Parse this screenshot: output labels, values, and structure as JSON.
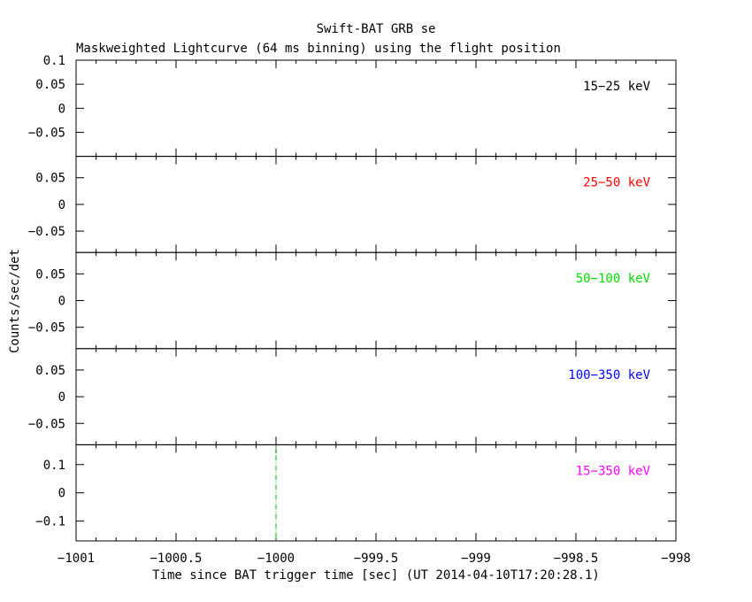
{
  "title": "Swift-BAT GRB se",
  "subtitle": "Maskweighted Lightcurve (64 ms binning) using the flight position",
  "xlabel": "Time since BAT trigger time [sec] (UT 2014-04-10T17:20:28.1)",
  "ylabel": "Counts/sec/det",
  "chart_data": [
    {
      "type": "line",
      "band": "15-25 keV",
      "band_display": "15−25 keV",
      "color": "#000000",
      "xlim": [
        -1001,
        -998
      ],
      "ylim": [
        -0.1,
        0.1
      ],
      "yticks": [
        {
          "v": 0.1,
          "label": "0.1"
        },
        {
          "v": 0.05,
          "label": "0.05"
        },
        {
          "v": 0,
          "label": "0"
        },
        {
          "v": -0.05,
          "label": "−0.05"
        }
      ],
      "series": []
    },
    {
      "type": "line",
      "band": "25-50 keV",
      "band_display": "25−50 keV",
      "color": "#ff0000",
      "xlim": [
        -1001,
        -998
      ],
      "ylim": [
        -0.09,
        0.09
      ],
      "yticks": [
        {
          "v": 0.05,
          "label": "0.05"
        },
        {
          "v": 0,
          "label": "0"
        },
        {
          "v": -0.05,
          "label": "−0.05"
        }
      ],
      "series": []
    },
    {
      "type": "line",
      "band": "50-100 keV",
      "band_display": "50−100 keV",
      "color": "#00dd00",
      "xlim": [
        -1001,
        -998
      ],
      "ylim": [
        -0.09,
        0.09
      ],
      "yticks": [
        {
          "v": 0.05,
          "label": "0.05"
        },
        {
          "v": 0,
          "label": "0"
        },
        {
          "v": -0.05,
          "label": "−0.05"
        }
      ],
      "series": []
    },
    {
      "type": "line",
      "band": "100-350 keV",
      "band_display": "100−350 keV",
      "color": "#0000ff",
      "xlim": [
        -1001,
        -998
      ],
      "ylim": [
        -0.09,
        0.09
      ],
      "yticks": [
        {
          "v": 0.05,
          "label": "0.05"
        },
        {
          "v": 0,
          "label": "0"
        },
        {
          "v": -0.05,
          "label": "−0.05"
        }
      ],
      "series": []
    },
    {
      "type": "line",
      "band": "15-350 keV",
      "band_display": "15−350 keV",
      "color": "#ff00ff",
      "xlim": [
        -1001,
        -998
      ],
      "ylim": [
        -0.17,
        0.17
      ],
      "yticks": [
        {
          "v": 0.1,
          "label": "0.1"
        },
        {
          "v": 0,
          "label": "0"
        },
        {
          "v": -0.1,
          "label": "−0.1"
        }
      ],
      "series": [],
      "vline": {
        "x": -1000,
        "color": "#00bb00",
        "style": "dash-dot"
      }
    }
  ],
  "xticks": [
    {
      "v": -1001,
      "label": "−1001"
    },
    {
      "v": -1000.5,
      "label": "−1000.5"
    },
    {
      "v": -1000,
      "label": "−1000"
    },
    {
      "v": -999.5,
      "label": "−999.5"
    },
    {
      "v": -999,
      "label": "−999"
    },
    {
      "v": -998.5,
      "label": "−998.5"
    },
    {
      "v": -998,
      "label": "−998"
    }
  ],
  "x_minor_step": 0.1,
  "grid": false
}
